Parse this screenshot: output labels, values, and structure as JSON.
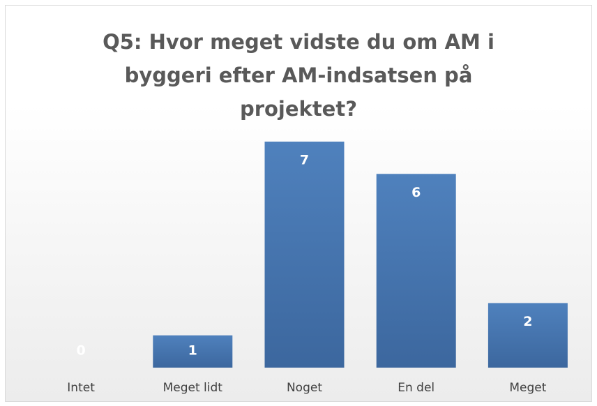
{
  "chart_data": {
    "type": "bar",
    "title": "Q5: Hvor meget vidste du om AM i byggeri efter AM-indsatsen på projektet?",
    "categories": [
      "Intet",
      "Meget lidt",
      "Noget",
      "En del",
      "Meget"
    ],
    "values": [
      0,
      1,
      7,
      6,
      2
    ],
    "color": "#4f81bd"
  }
}
